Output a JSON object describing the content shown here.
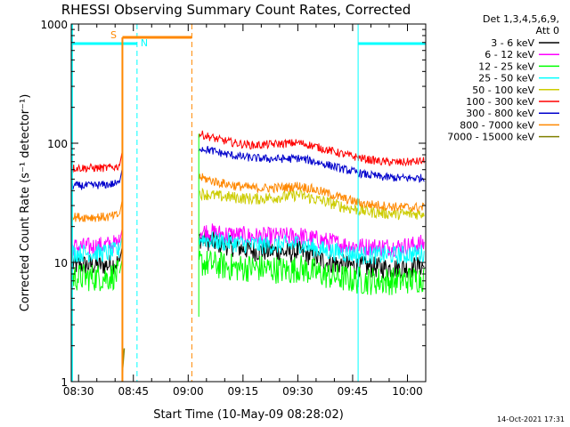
{
  "chart_data": {
    "type": "line",
    "title": "RHESSI Observing Summary Count Rates, Corrected",
    "xlabel": "Start Time (10-May-09 08:28:02)",
    "ylabel": "Corrected Count Rate (s⁻¹ detector⁻¹)",
    "y_scale": "log",
    "ylim": [
      1,
      1000
    ],
    "x_unit": "minutes after 08:28:02",
    "xlim": [
      0,
      97
    ],
    "x_ticks": [
      {
        "label": "08:30",
        "value": 2
      },
      {
        "label": "08:45",
        "value": 17
      },
      {
        "label": "09:00",
        "value": 32
      },
      {
        "label": "09:15",
        "value": 47
      },
      {
        "label": "09:30",
        "value": 62
      },
      {
        "label": "09:45",
        "value": 77
      },
      {
        "label": "10:00",
        "value": 92
      }
    ],
    "y_ticks": [
      {
        "label": "1",
        "value": 1
      },
      {
        "label": "10",
        "value": 10
      },
      {
        "label": "100",
        "value": 100
      },
      {
        "label": "1000",
        "value": 1000
      }
    ],
    "legend": {
      "placement": "right",
      "header": [
        "Det 1,3,4,5,6,9,",
        "Att 0"
      ]
    },
    "series": [
      {
        "name": "3 - 6 keV",
        "color": "#000000",
        "x": [
          0,
          5,
          10,
          13,
          14,
          35,
          40,
          45,
          50,
          55,
          60,
          62,
          65,
          70,
          75,
          80,
          85,
          90,
          94,
          97
        ],
        "y": [
          9.5,
          9.5,
          9.5,
          10,
          11,
          16,
          14.5,
          13.5,
          12.5,
          12.5,
          12,
          12.5,
          11.5,
          10,
          9.5,
          9.2,
          9,
          9,
          9.2,
          9.5
        ]
      },
      {
        "name": "6 - 12 keV",
        "color": "#ff00ff",
        "x": [
          0,
          5,
          10,
          13,
          14,
          35,
          40,
          45,
          50,
          55,
          60,
          62,
          65,
          70,
          75,
          80,
          85,
          90,
          94,
          97
        ],
        "y": [
          13.5,
          13.5,
          14,
          14.5,
          15,
          18.5,
          17.5,
          17,
          16.5,
          16.5,
          16.5,
          17,
          16,
          15,
          14,
          13.5,
          13.5,
          13.5,
          14,
          14.5
        ]
      },
      {
        "name": "12 - 25 keV",
        "color": "#00ff00",
        "x": [
          0,
          5,
          10,
          13,
          14,
          35,
          40,
          45,
          50,
          55,
          60,
          62,
          65,
          70,
          75,
          80,
          85,
          90,
          94,
          97
        ],
        "y": [
          7.5,
          7.5,
          7.5,
          8,
          8.5,
          10,
          9.5,
          9,
          9,
          8.8,
          8.5,
          9,
          8.5,
          7.8,
          7.3,
          7,
          7,
          7,
          7.2,
          7.5
        ]
      },
      {
        "name": "25 - 50 keV",
        "color": "#00ffff",
        "x": [
          0,
          5,
          10,
          13,
          14,
          35,
          40,
          45,
          50,
          55,
          60,
          62,
          65,
          70,
          75,
          80,
          85,
          90,
          94,
          97
        ],
        "y": [
          12,
          12,
          12,
          12.5,
          13,
          16,
          15,
          14.5,
          14,
          14,
          14,
          14.5,
          13.5,
          12.5,
          12,
          11.5,
          11.5,
          11.5,
          11.8,
          12
        ]
      },
      {
        "name": "50 - 100 keV",
        "color": "#cccc00",
        "x": [
          0,
          35,
          40,
          45,
          50,
          55,
          60,
          62,
          65,
          70,
          75,
          80,
          85,
          90,
          94,
          97
        ],
        "y": [
          null,
          38,
          36,
          35,
          34,
          35,
          36,
          37,
          35,
          32,
          29,
          27,
          26,
          25.5,
          25.5,
          26
        ]
      },
      {
        "name": "100 - 300 keV",
        "color": "#ff0000",
        "x": [
          0,
          5,
          10,
          13,
          14,
          35,
          40,
          45,
          50,
          55,
          60,
          62,
          65,
          70,
          75,
          80,
          85,
          90,
          94,
          97
        ],
        "y": [
          62,
          62,
          62,
          64,
          66,
          120,
          108,
          100,
          96,
          98,
          100,
          101,
          97,
          88,
          80,
          74,
          70,
          69,
          70,
          71
        ]
      },
      {
        "name": "300 - 800 keV",
        "color": "#0000cc",
        "x": [
          0,
          5,
          10,
          13,
          14,
          35,
          40,
          45,
          50,
          55,
          60,
          62,
          65,
          70,
          75,
          80,
          85,
          90,
          94,
          97
        ],
        "y": [
          44,
          44,
          45,
          46,
          48,
          92,
          84,
          78,
          75,
          74,
          74,
          75,
          72,
          66,
          60,
          55,
          52,
          51,
          51,
          51
        ]
      },
      {
        "name": "800 - 7000 keV",
        "color": "#ff8800",
        "x": [
          0,
          5,
          10,
          13,
          14,
          35,
          40,
          45,
          50,
          55,
          60,
          62,
          65,
          70,
          75,
          80,
          85,
          90,
          94,
          97
        ],
        "y": [
          24,
          24,
          24,
          25,
          26,
          52,
          47,
          44,
          42,
          42,
          43,
          44,
          42,
          38,
          34,
          31,
          30,
          29,
          29,
          29
        ]
      },
      {
        "name": "7000 - 15000 keV",
        "color": "#808000",
        "x": [
          14,
          14.5
        ],
        "y": [
          1.2,
          1.9
        ]
      }
    ],
    "segments": [
      {
        "label": "S",
        "color": "#ff8800",
        "x_start": 14,
        "x_end": 33
      },
      {
        "label": "N",
        "color": "#00ffff",
        "x_start": 0,
        "x_end": 18
      }
    ],
    "right_bar_color": "#00ffff",
    "right_bar_x": [
      78.5,
      97
    ]
  },
  "footer_timestamp": "14-Oct-2021 17:31"
}
